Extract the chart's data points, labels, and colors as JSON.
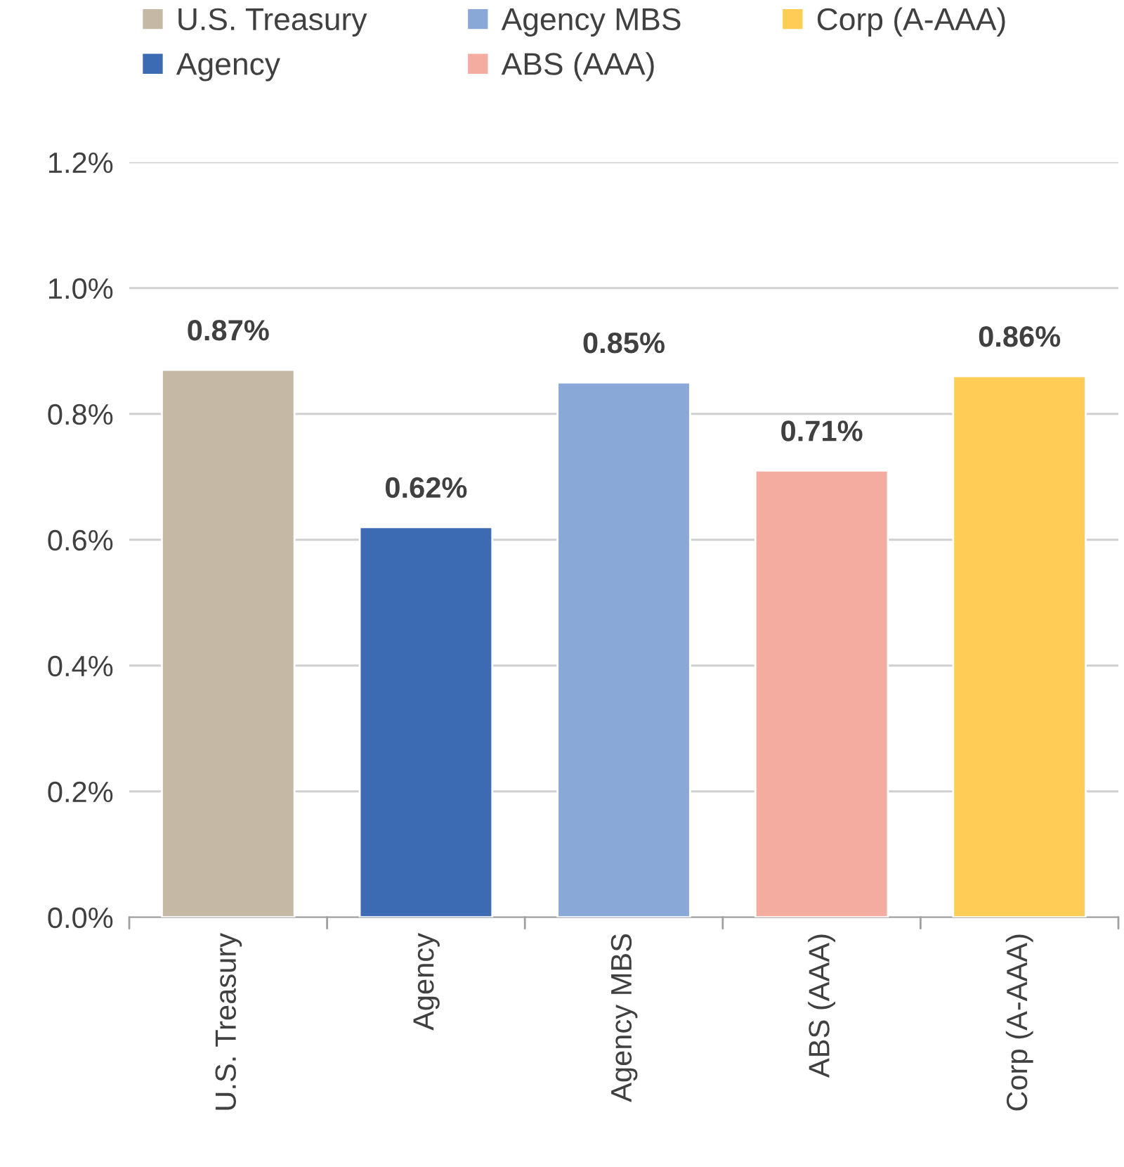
{
  "chart_data": {
    "type": "bar",
    "categories": [
      "U.S. Treasury",
      "Agency",
      "Agency MBS",
      "ABS (AAA)",
      "Corp (A-AAA)"
    ],
    "series": [
      {
        "name": "U.S. Treasury",
        "color": "#c5b9a6",
        "values": [
          0.87,
          null,
          null,
          null,
          null
        ],
        "value_labels": [
          "0.87%",
          null,
          null,
          null,
          null
        ]
      },
      {
        "name": "Agency",
        "color": "#3d6bb3",
        "values": [
          null,
          0.62,
          null,
          null,
          null
        ],
        "value_labels": [
          null,
          "0.62%",
          null,
          null,
          null
        ]
      },
      {
        "name": "Agency MBS",
        "color": "#8aa8d7",
        "values": [
          null,
          null,
          0.85,
          null,
          null
        ],
        "value_labels": [
          null,
          null,
          "0.85%",
          null,
          null
        ]
      },
      {
        "name": "ABS (AAA)",
        "color": "#f4aba0",
        "values": [
          null,
          null,
          null,
          0.71,
          null
        ],
        "value_labels": [
          null,
          null,
          null,
          "0.71%",
          null
        ]
      },
      {
        "name": "Corp (A-AAA)",
        "color": "#ffcd55",
        "values": [
          null,
          null,
          null,
          null,
          0.86
        ],
        "value_labels": [
          null,
          null,
          null,
          null,
          "0.86%"
        ]
      }
    ],
    "ylim": [
      0,
      1.2
    ],
    "yticks": [
      {
        "value": 0,
        "label": "0.0%"
      },
      {
        "value": 0.2,
        "label": "0.2%"
      },
      {
        "value": 0.4,
        "label": "0.4%"
      },
      {
        "value": 0.6,
        "label": "0.6%"
      },
      {
        "value": 0.8,
        "label": "0.8%"
      },
      {
        "value": 1.0,
        "label": "1.0%"
      },
      {
        "value": 1.2,
        "label": "1.2%"
      }
    ],
    "grid": "y",
    "legend": "top"
  }
}
